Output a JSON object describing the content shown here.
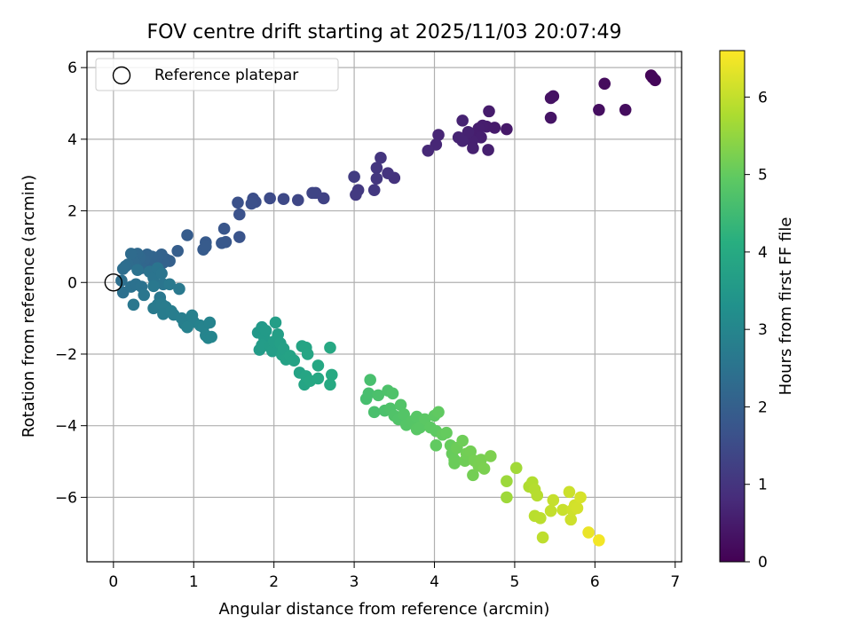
{
  "chart_data": {
    "type": "scatter",
    "title": "FOV centre drift starting at 2025/11/03 20:07:49",
    "xlabel": "Angular distance from reference (arcmin)",
    "ylabel": "Rotation from reference (arcmin)",
    "xlim": [
      -0.33,
      7.08
    ],
    "ylim": [
      -7.8,
      6.45
    ],
    "xticks": [
      0,
      1,
      2,
      3,
      4,
      5,
      6,
      7
    ],
    "yticks": [
      -6,
      -4,
      -2,
      0,
      2,
      4,
      6
    ],
    "grid": true,
    "legend": {
      "placement": "top-left",
      "entries": [
        "Reference platepar"
      ]
    },
    "reference_point": {
      "x": 0,
      "y": 0
    },
    "colorbar": {
      "label": "Hours from first FF file",
      "range": [
        0,
        6.6
      ],
      "ticks": [
        0,
        1,
        2,
        3,
        4,
        5,
        6
      ],
      "colormap": "viridis"
    },
    "points": [
      {
        "x": 6.7,
        "y": 5.78,
        "h": 0.05
      },
      {
        "x": 6.75,
        "y": 5.65,
        "h": 0.08
      },
      {
        "x": 6.72,
        "y": 5.72,
        "h": 0.1
      },
      {
        "x": 6.12,
        "y": 5.55,
        "h": 0.2
      },
      {
        "x": 6.05,
        "y": 4.82,
        "h": 0.25
      },
      {
        "x": 6.38,
        "y": 4.82,
        "h": 0.22
      },
      {
        "x": 5.48,
        "y": 5.2,
        "h": 0.3
      },
      {
        "x": 5.45,
        "y": 5.15,
        "h": 0.32
      },
      {
        "x": 5.45,
        "y": 4.6,
        "h": 0.35
      },
      {
        "x": 4.9,
        "y": 4.28,
        "h": 0.45
      },
      {
        "x": 4.75,
        "y": 4.32,
        "h": 0.48
      },
      {
        "x": 4.68,
        "y": 4.78,
        "h": 0.5
      },
      {
        "x": 4.65,
        "y": 4.35,
        "h": 0.5
      },
      {
        "x": 4.6,
        "y": 4.38,
        "h": 0.52
      },
      {
        "x": 4.55,
        "y": 4.3,
        "h": 0.55
      },
      {
        "x": 4.52,
        "y": 4.1,
        "h": 0.55
      },
      {
        "x": 4.58,
        "y": 4.05,
        "h": 0.57
      },
      {
        "x": 4.47,
        "y": 3.95,
        "h": 0.6
      },
      {
        "x": 4.48,
        "y": 3.75,
        "h": 0.6
      },
      {
        "x": 4.67,
        "y": 3.7,
        "h": 0.58
      },
      {
        "x": 4.42,
        "y": 4.2,
        "h": 0.62
      },
      {
        "x": 4.35,
        "y": 4.52,
        "h": 0.63
      },
      {
        "x": 4.3,
        "y": 4.05,
        "h": 0.65
      },
      {
        "x": 4.35,
        "y": 3.95,
        "h": 0.66
      },
      {
        "x": 4.05,
        "y": 4.12,
        "h": 0.7
      },
      {
        "x": 4.02,
        "y": 3.85,
        "h": 0.72
      },
      {
        "x": 3.92,
        "y": 3.68,
        "h": 0.75
      },
      {
        "x": 3.5,
        "y": 2.92,
        "h": 0.95
      },
      {
        "x": 3.42,
        "y": 3.05,
        "h": 0.98
      },
      {
        "x": 3.33,
        "y": 3.48,
        "h": 1.0
      },
      {
        "x": 3.28,
        "y": 3.2,
        "h": 1.02
      },
      {
        "x": 3.28,
        "y": 2.9,
        "h": 1.05
      },
      {
        "x": 3.25,
        "y": 2.58,
        "h": 1.07
      },
      {
        "x": 3.05,
        "y": 2.58,
        "h": 1.1
      },
      {
        "x": 3.02,
        "y": 2.45,
        "h": 1.12
      },
      {
        "x": 3.0,
        "y": 2.95,
        "h": 1.15
      },
      {
        "x": 2.62,
        "y": 2.35,
        "h": 1.3
      },
      {
        "x": 2.52,
        "y": 2.5,
        "h": 1.33
      },
      {
        "x": 2.48,
        "y": 2.5,
        "h": 1.35
      },
      {
        "x": 2.3,
        "y": 2.3,
        "h": 1.4
      },
      {
        "x": 2.12,
        "y": 2.33,
        "h": 1.45
      },
      {
        "x": 1.95,
        "y": 2.35,
        "h": 1.5
      },
      {
        "x": 1.77,
        "y": 2.25,
        "h": 1.55
      },
      {
        "x": 1.74,
        "y": 2.34,
        "h": 1.57
      },
      {
        "x": 1.72,
        "y": 2.2,
        "h": 1.6
      },
      {
        "x": 1.57,
        "y": 1.9,
        "h": 1.65
      },
      {
        "x": 1.55,
        "y": 2.23,
        "h": 1.62
      },
      {
        "x": 1.57,
        "y": 1.27,
        "h": 1.7
      },
      {
        "x": 1.38,
        "y": 1.5,
        "h": 1.75
      },
      {
        "x": 1.4,
        "y": 1.13,
        "h": 1.77
      },
      {
        "x": 1.35,
        "y": 1.1,
        "h": 1.8
      },
      {
        "x": 1.15,
        "y": 1.12,
        "h": 1.85
      },
      {
        "x": 1.12,
        "y": 0.92,
        "h": 1.87
      },
      {
        "x": 1.15,
        "y": 1.0,
        "h": 1.88
      },
      {
        "x": 0.92,
        "y": 1.32,
        "h": 1.9
      },
      {
        "x": 0.8,
        "y": 0.88,
        "h": 1.95
      },
      {
        "x": 0.7,
        "y": 0.6,
        "h": 2.0
      },
      {
        "x": 0.65,
        "y": 0.65,
        "h": 2.02
      },
      {
        "x": 0.62,
        "y": 0.55,
        "h": 2.05
      },
      {
        "x": 0.6,
        "y": 0.78,
        "h": 2.05
      },
      {
        "x": 0.55,
        "y": 0.7,
        "h": 2.08
      },
      {
        "x": 0.5,
        "y": 0.6,
        "h": 2.1
      },
      {
        "x": 0.48,
        "y": 0.72,
        "h": 2.12
      },
      {
        "x": 0.45,
        "y": 0.48,
        "h": 2.12
      },
      {
        "x": 0.42,
        "y": 0.78,
        "h": 2.15
      },
      {
        "x": 0.38,
        "y": 0.62,
        "h": 2.17
      },
      {
        "x": 0.35,
        "y": 0.4,
        "h": 2.2
      },
      {
        "x": 0.33,
        "y": 0.7,
        "h": 2.22
      },
      {
        "x": 0.3,
        "y": 0.8,
        "h": 2.25
      },
      {
        "x": 0.28,
        "y": 0.52,
        "h": 2.25
      },
      {
        "x": 0.25,
        "y": 0.58,
        "h": 2.28
      },
      {
        "x": 0.22,
        "y": 0.8,
        "h": 2.3
      },
      {
        "x": 0.18,
        "y": 0.5,
        "h": 2.33
      },
      {
        "x": 0.15,
        "y": 0.45,
        "h": 2.35
      },
      {
        "x": 0.12,
        "y": 0.38,
        "h": 2.38
      },
      {
        "x": 0.1,
        "y": 0.05,
        "h": 2.4
      },
      {
        "x": 0.12,
        "y": -0.28,
        "h": 2.42
      },
      {
        "x": 0.22,
        "y": -0.12,
        "h": 2.45
      },
      {
        "x": 0.28,
        "y": -0.05,
        "h": 2.45
      },
      {
        "x": 0.35,
        "y": -0.12,
        "h": 2.48
      },
      {
        "x": 0.3,
        "y": 0.35,
        "h": 2.48
      },
      {
        "x": 0.45,
        "y": 0.3,
        "h": 2.5
      },
      {
        "x": 0.5,
        "y": 0.12,
        "h": 2.52
      },
      {
        "x": 0.55,
        "y": 0.4,
        "h": 2.53
      },
      {
        "x": 0.6,
        "y": 0.25,
        "h": 2.55
      },
      {
        "x": 0.62,
        "y": -0.05,
        "h": 2.56
      },
      {
        "x": 0.38,
        "y": -0.35,
        "h": 2.58
      },
      {
        "x": 0.25,
        "y": -0.62,
        "h": 2.6
      },
      {
        "x": 0.58,
        "y": -0.42,
        "h": 2.62
      },
      {
        "x": 0.5,
        "y": -0.1,
        "h": 2.63
      },
      {
        "x": 0.7,
        "y": -0.05,
        "h": 2.65
      },
      {
        "x": 0.82,
        "y": -0.18,
        "h": 2.66
      },
      {
        "x": 0.55,
        "y": -0.62,
        "h": 2.68
      },
      {
        "x": 0.5,
        "y": -0.72,
        "h": 2.7
      },
      {
        "x": 0.6,
        "y": -0.6,
        "h": 2.72
      },
      {
        "x": 0.65,
        "y": -0.68,
        "h": 2.73
      },
      {
        "x": 0.62,
        "y": -0.88,
        "h": 2.75
      },
      {
        "x": 0.72,
        "y": -0.8,
        "h": 2.77
      },
      {
        "x": 0.75,
        "y": -0.9,
        "h": 2.78
      },
      {
        "x": 0.85,
        "y": -1.0,
        "h": 2.8
      },
      {
        "x": 0.88,
        "y": -1.15,
        "h": 2.82
      },
      {
        "x": 0.95,
        "y": -1.05,
        "h": 2.83
      },
      {
        "x": 0.98,
        "y": -0.92,
        "h": 2.85
      },
      {
        "x": 1.0,
        "y": -1.1,
        "h": 2.86
      },
      {
        "x": 0.92,
        "y": -1.25,
        "h": 2.88
      },
      {
        "x": 1.08,
        "y": -1.2,
        "h": 2.9
      },
      {
        "x": 1.12,
        "y": -1.25,
        "h": 2.92
      },
      {
        "x": 1.2,
        "y": -1.12,
        "h": 2.93
      },
      {
        "x": 1.15,
        "y": -1.48,
        "h": 2.95
      },
      {
        "x": 1.18,
        "y": -1.55,
        "h": 2.97
      },
      {
        "x": 1.22,
        "y": -1.52,
        "h": 2.98
      },
      {
        "x": 1.8,
        "y": -1.4,
        "h": 3.5
      },
      {
        "x": 1.85,
        "y": -1.25,
        "h": 3.52
      },
      {
        "x": 1.88,
        "y": -1.55,
        "h": 3.55
      },
      {
        "x": 1.9,
        "y": -1.35,
        "h": 3.55
      },
      {
        "x": 1.82,
        "y": -1.88,
        "h": 3.58
      },
      {
        "x": 1.85,
        "y": -1.75,
        "h": 3.6
      },
      {
        "x": 1.95,
        "y": -1.8,
        "h": 3.62
      },
      {
        "x": 1.98,
        "y": -1.92,
        "h": 3.63
      },
      {
        "x": 2.0,
        "y": -1.65,
        "h": 3.65
      },
      {
        "x": 2.02,
        "y": -1.12,
        "h": 3.67
      },
      {
        "x": 2.05,
        "y": -1.45,
        "h": 3.68
      },
      {
        "x": 2.08,
        "y": -1.7,
        "h": 3.7
      },
      {
        "x": 2.1,
        "y": -2.02,
        "h": 3.72
      },
      {
        "x": 2.12,
        "y": -1.85,
        "h": 3.73
      },
      {
        "x": 2.15,
        "y": -2.15,
        "h": 3.75
      },
      {
        "x": 2.2,
        "y": -2.05,
        "h": 3.77
      },
      {
        "x": 2.25,
        "y": -2.18,
        "h": 3.78
      },
      {
        "x": 2.32,
        "y": -2.52,
        "h": 3.8
      },
      {
        "x": 2.35,
        "y": -1.78,
        "h": 3.82
      },
      {
        "x": 2.38,
        "y": -2.85,
        "h": 3.83
      },
      {
        "x": 2.4,
        "y": -1.82,
        "h": 3.85
      },
      {
        "x": 2.42,
        "y": -2.0,
        "h": 3.87
      },
      {
        "x": 2.4,
        "y": -2.62,
        "h": 3.88
      },
      {
        "x": 2.45,
        "y": -2.75,
        "h": 3.9
      },
      {
        "x": 2.55,
        "y": -2.32,
        "h": 3.92
      },
      {
        "x": 2.55,
        "y": -2.68,
        "h": 3.93
      },
      {
        "x": 2.7,
        "y": -1.82,
        "h": 3.95
      },
      {
        "x": 2.72,
        "y": -2.58,
        "h": 3.97
      },
      {
        "x": 2.7,
        "y": -2.85,
        "h": 3.98
      },
      {
        "x": 3.15,
        "y": -3.25,
        "h": 4.6
      },
      {
        "x": 3.18,
        "y": -3.1,
        "h": 4.62
      },
      {
        "x": 3.2,
        "y": -2.72,
        "h": 4.63
      },
      {
        "x": 3.25,
        "y": -3.62,
        "h": 4.65
      },
      {
        "x": 3.3,
        "y": -3.15,
        "h": 4.67
      },
      {
        "x": 3.38,
        "y": -3.58,
        "h": 4.68
      },
      {
        "x": 3.42,
        "y": -3.02,
        "h": 4.7
      },
      {
        "x": 3.45,
        "y": -3.52,
        "h": 4.72
      },
      {
        "x": 3.48,
        "y": -3.1,
        "h": 4.73
      },
      {
        "x": 3.5,
        "y": -3.72,
        "h": 4.75
      },
      {
        "x": 3.55,
        "y": -3.82,
        "h": 4.77
      },
      {
        "x": 3.58,
        "y": -3.42,
        "h": 4.78
      },
      {
        "x": 3.62,
        "y": -3.68,
        "h": 4.8
      },
      {
        "x": 3.65,
        "y": -3.98,
        "h": 4.82
      },
      {
        "x": 3.72,
        "y": -3.88,
        "h": 4.83
      },
      {
        "x": 3.78,
        "y": -3.75,
        "h": 4.85
      },
      {
        "x": 3.78,
        "y": -4.1,
        "h": 4.87
      },
      {
        "x": 3.82,
        "y": -4.05,
        "h": 4.88
      },
      {
        "x": 3.88,
        "y": -3.82,
        "h": 4.9
      },
      {
        "x": 3.95,
        "y": -4.05,
        "h": 4.92
      },
      {
        "x": 4.0,
        "y": -3.72,
        "h": 4.93
      },
      {
        "x": 4.02,
        "y": -4.15,
        "h": 4.95
      },
      {
        "x": 4.05,
        "y": -3.62,
        "h": 4.97
      },
      {
        "x": 4.02,
        "y": -4.55,
        "h": 4.98
      },
      {
        "x": 4.1,
        "y": -4.25,
        "h": 5.0
      },
      {
        "x": 4.15,
        "y": -4.2,
        "h": 5.02
      },
      {
        "x": 4.2,
        "y": -4.55,
        "h": 5.03
      },
      {
        "x": 4.22,
        "y": -4.78,
        "h": 5.05
      },
      {
        "x": 4.25,
        "y": -4.95,
        "h": 5.07
      },
      {
        "x": 4.25,
        "y": -5.05,
        "h": 5.08
      },
      {
        "x": 4.28,
        "y": -4.62,
        "h": 5.1
      },
      {
        "x": 4.35,
        "y": -4.42,
        "h": 5.12
      },
      {
        "x": 4.38,
        "y": -4.98,
        "h": 5.13
      },
      {
        "x": 4.4,
        "y": -4.78,
        "h": 5.15
      },
      {
        "x": 4.45,
        "y": -4.72,
        "h": 5.17
      },
      {
        "x": 4.48,
        "y": -5.38,
        "h": 5.18
      },
      {
        "x": 4.5,
        "y": -4.98,
        "h": 5.2
      },
      {
        "x": 4.55,
        "y": -5.12,
        "h": 5.22
      },
      {
        "x": 4.58,
        "y": -4.95,
        "h": 5.23
      },
      {
        "x": 4.62,
        "y": -5.2,
        "h": 5.25
      },
      {
        "x": 4.7,
        "y": -4.85,
        "h": 5.27
      },
      {
        "x": 4.9,
        "y": -5.55,
        "h": 5.6
      },
      {
        "x": 4.9,
        "y": -6.0,
        "h": 5.62
      },
      {
        "x": 5.02,
        "y": -5.18,
        "h": 5.65
      },
      {
        "x": 5.18,
        "y": -5.7,
        "h": 5.8
      },
      {
        "x": 5.22,
        "y": -5.58,
        "h": 5.82
      },
      {
        "x": 5.25,
        "y": -5.78,
        "h": 5.85
      },
      {
        "x": 5.28,
        "y": -5.95,
        "h": 5.87
      },
      {
        "x": 5.25,
        "y": -6.52,
        "h": 5.9
      },
      {
        "x": 5.32,
        "y": -6.58,
        "h": 5.92
      },
      {
        "x": 5.35,
        "y": -7.12,
        "h": 5.95
      },
      {
        "x": 5.45,
        "y": -6.38,
        "h": 6.0
      },
      {
        "x": 5.48,
        "y": -6.08,
        "h": 6.02
      },
      {
        "x": 5.6,
        "y": -6.35,
        "h": 6.05
      },
      {
        "x": 5.68,
        "y": -5.85,
        "h": 6.08
      },
      {
        "x": 5.7,
        "y": -6.62,
        "h": 6.1
      },
      {
        "x": 5.72,
        "y": -6.35,
        "h": 6.12
      },
      {
        "x": 5.75,
        "y": -6.22,
        "h": 6.15
      },
      {
        "x": 5.78,
        "y": -6.3,
        "h": 6.17
      },
      {
        "x": 5.82,
        "y": -6.0,
        "h": 6.2
      },
      {
        "x": 5.92,
        "y": -6.98,
        "h": 6.4
      },
      {
        "x": 6.05,
        "y": -7.2,
        "h": 6.5
      }
    ]
  }
}
